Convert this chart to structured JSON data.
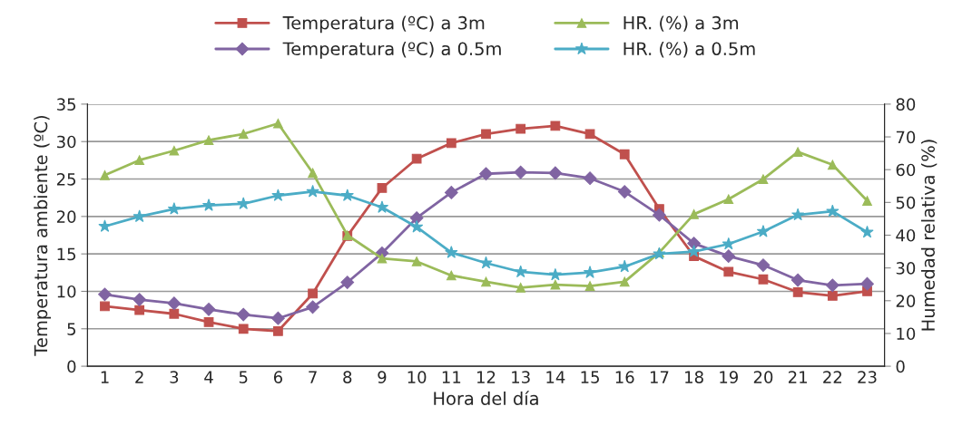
{
  "chart_data": {
    "type": "line",
    "xlabel": "Hora del día",
    "ylabel": "Temperatura ambiente (ºC)",
    "y2label": "Humedad relativa (%)",
    "categories": [
      "1",
      "2",
      "3",
      "4",
      "5",
      "6",
      "7",
      "8",
      "9",
      "10",
      "11",
      "12",
      "13",
      "14",
      "15",
      "16",
      "17",
      "18",
      "19",
      "20",
      "21",
      "22",
      "23"
    ],
    "ylim": [
      0,
      35
    ],
    "yticks": [
      0,
      5,
      10,
      15,
      20,
      25,
      30,
      35
    ],
    "y2lim": [
      0,
      80
    ],
    "y2ticks": [
      0,
      10,
      20,
      30,
      40,
      50,
      60,
      70,
      80
    ],
    "grid": "y",
    "legend": "top",
    "series": [
      {
        "name": "Temperatura (ºC) a 3m",
        "color": "#c0504d",
        "marker": "square",
        "values": [
          8.0,
          7.5,
          7.0,
          5.9,
          5.0,
          4.7,
          9.7,
          17.4,
          23.8,
          27.7,
          29.8,
          31.0,
          31.7,
          32.1,
          31.0,
          28.3,
          21.0,
          14.7,
          12.6,
          11.6,
          9.9,
          9.4,
          10.0
        ]
      },
      {
        "name": "Temperatura (ºC) a 0.5m",
        "color": "#8064a2",
        "marker": "diamond",
        "values": [
          9.6,
          8.9,
          8.4,
          7.6,
          6.9,
          6.4,
          7.9,
          11.2,
          15.1,
          19.8,
          23.2,
          25.7,
          25.9,
          25.8,
          25.1,
          23.3,
          20.2,
          16.4,
          14.7,
          13.5,
          11.5,
          10.8,
          11.0
        ]
      },
      {
        "name": "HR. (%) a 3m",
        "color": "#9bbb59",
        "marker": "triangle",
        "axis": "y2",
        "values": [
          58.3,
          62.9,
          65.8,
          69.0,
          70.9,
          74.1,
          59.0,
          40.0,
          32.9,
          32.0,
          27.7,
          25.8,
          24.0,
          24.9,
          24.5,
          25.8,
          34.7,
          46.4,
          51.0,
          57.1,
          65.4,
          61.5,
          50.5
        ]
      },
      {
        "name": "HR. (%) a 0.5m",
        "color": "#4bacc6",
        "marker": "star",
        "axis": "y2",
        "values": [
          42.7,
          45.7,
          48.0,
          49.1,
          49.6,
          52.1,
          53.3,
          52.1,
          48.5,
          42.5,
          34.7,
          31.5,
          28.8,
          27.9,
          28.6,
          30.4,
          34.3,
          35.0,
          37.3,
          41.1,
          46.2,
          47.3,
          40.9
        ]
      }
    ]
  }
}
